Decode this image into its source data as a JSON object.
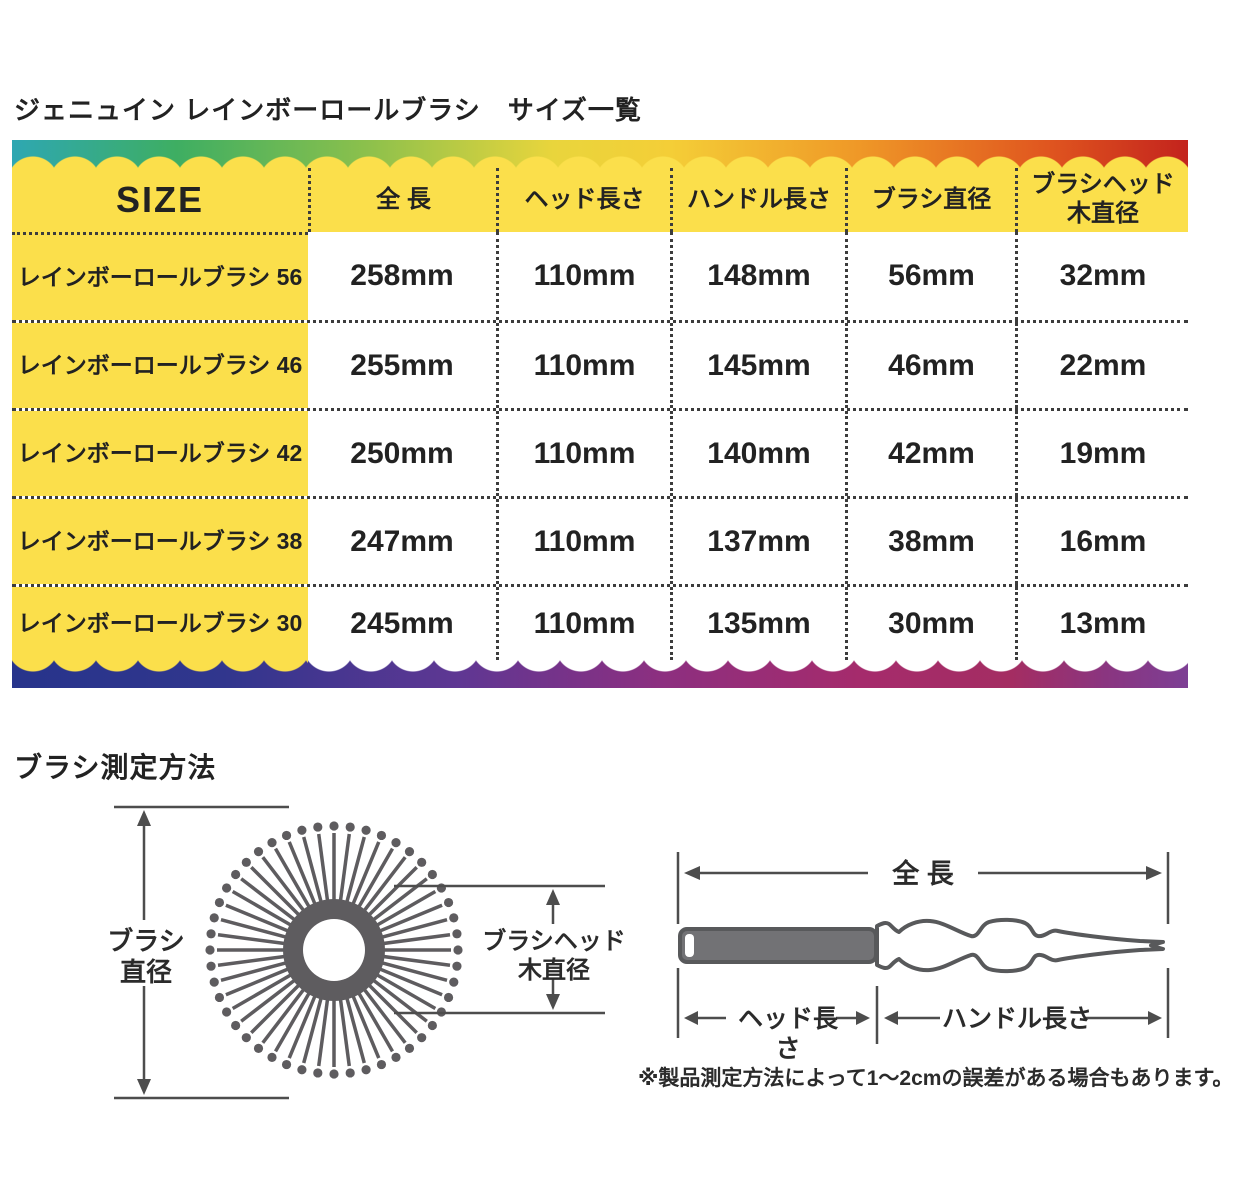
{
  "page": {
    "title": "ジェニュイン レインボーロールブラシ　サイズ一覧"
  },
  "size_table": {
    "columns": [
      "SIZE",
      "全 長",
      "ヘッド長さ",
      "ハンドル長さ",
      "ブラシ直径",
      "ブラシヘッド\n木直径"
    ],
    "rows": [
      {
        "label": "レインボーロールブラシ 56",
        "total_length": "258mm",
        "head_length": "110mm",
        "handle_length": "148mm",
        "brush_diameter": "56mm",
        "head_wood_diameter": "32mm"
      },
      {
        "label": "レインボーロールブラシ 46",
        "total_length": "255mm",
        "head_length": "110mm",
        "handle_length": "145mm",
        "brush_diameter": "46mm",
        "head_wood_diameter": "22mm"
      },
      {
        "label": "レインボーロールブラシ 42",
        "total_length": "250mm",
        "head_length": "110mm",
        "handle_length": "140mm",
        "brush_diameter": "42mm",
        "head_wood_diameter": "19mm"
      },
      {
        "label": "レインボーロールブラシ 38",
        "total_length": "247mm",
        "head_length": "110mm",
        "handle_length": "137mm",
        "brush_diameter": "38mm",
        "head_wood_diameter": "16mm"
      },
      {
        "label": "レインボーロールブラシ 30",
        "total_length": "245mm",
        "head_length": "110mm",
        "handle_length": "135mm",
        "brush_diameter": "30mm",
        "head_wood_diameter": "13mm"
      }
    ]
  },
  "measurement_section": {
    "title": "ブラシ測定方法",
    "circle_diagram": {
      "brush_diameter_label": "ブラシ\n直径",
      "head_wood_diameter_label": "ブラシヘッド\n木直径"
    },
    "side_diagram": {
      "total_length_label": "全 長",
      "head_length_label": "ヘッド長さ",
      "handle_length_label": "ハンドル長さ"
    },
    "footnote": "※製品測定方法によって1～2cmの誤差がある場合もあります。"
  },
  "colors": {
    "cell_yellow": "#FBDF4B",
    "top_border_gradient": [
      "#2EA7B2 0%",
      "#3EAE62 14%",
      "#8BC04C 30%",
      "#E9D53C 46%",
      "#F4CE37 56%",
      "#EF9827 72%",
      "#E0561F 88%",
      "#C3231D 100%"
    ],
    "bottom_border_gradient": [
      "#27348B 0%",
      "#31368D 18%",
      "#5F3793 38%",
      "#8C2F80 55%",
      "#A52B6C 72%",
      "#A42D62 85%",
      "#8A3580 93%",
      "#7D3F94 100%"
    ],
    "diagram_gray": "#5E5C5F",
    "text": "#222222"
  }
}
